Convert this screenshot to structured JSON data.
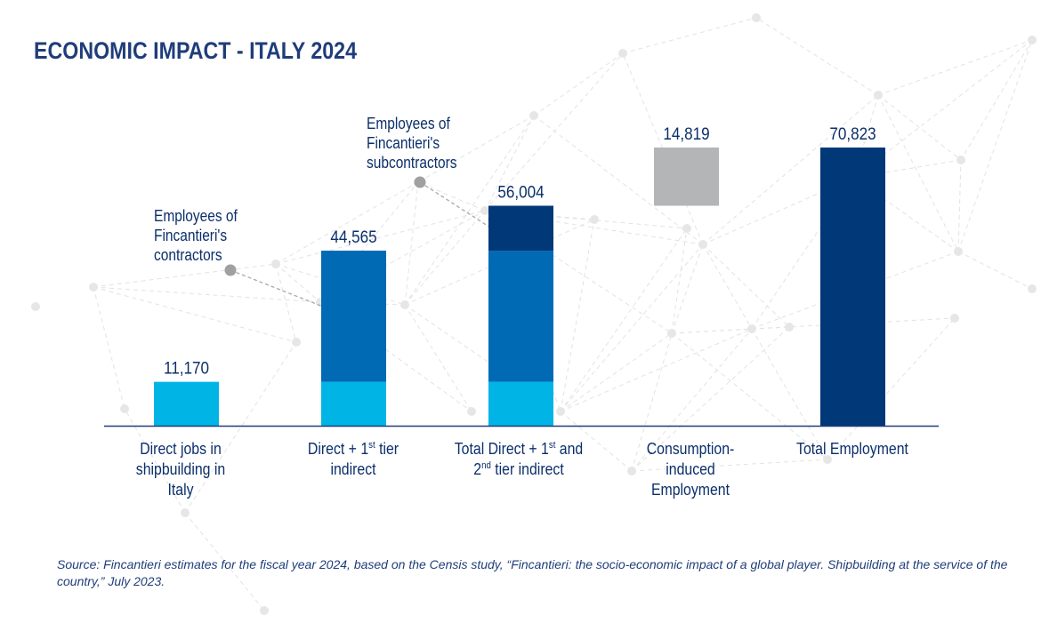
{
  "title": "ECONOMIC IMPACT - ITALY 2024",
  "colors": {
    "light_blue": "#00b4e6",
    "mid_blue": "#006ab4",
    "dark_blue": "#003878",
    "gray": "#b4b5b7",
    "axis": "#1f3d7a",
    "text": "#0b2f6a"
  },
  "categories": [
    {
      "line1": "Direct jobs in",
      "line2": "shipbuilding in",
      "line3": "Italy"
    },
    {
      "line1a": "Direct + 1",
      "line1sup": "st",
      "line1b": " tier",
      "line2": "indirect"
    },
    {
      "line1a": "Total Direct + 1",
      "line1sup": "st",
      "line1b": " and",
      "line2a": "2",
      "line2sup": "nd",
      "line2b": " tier indirect"
    },
    {
      "line1": "Consumption-induced",
      "line2": "Employment"
    },
    {
      "line1": "Total Employment"
    }
  ],
  "callouts": {
    "contractors": [
      "Employees of",
      "Fincantieri's",
      "contractors"
    ],
    "subcontractors": [
      "Employees of",
      "Fincantieri's",
      "subcontractors"
    ]
  },
  "source": "Source: Fincantieri estimates for the fiscal year 2024, based on the Censis study, “Fincantieri: the socio-economic impact of a global player. Shipbuilding at the service of the country,” July 2023.",
  "chart_data": {
    "type": "bar",
    "title": "ECONOMIC IMPACT - ITALY 2024",
    "categories": [
      "Direct jobs in shipbuilding in Italy",
      "Direct + 1st tier indirect",
      "Total Direct + 1st and 2nd tier indirect",
      "Consumption-induced Employment",
      "Total Employment"
    ],
    "totals": [
      11170,
      44565,
      56004,
      14819,
      70823
    ],
    "total_labels": [
      "11,170",
      "44,565",
      "56,004",
      "14,819",
      "70,823"
    ],
    "bars": [
      {
        "segments": [
          {
            "from": 0,
            "to": 11170,
            "color": "light_blue"
          }
        ]
      },
      {
        "segments": [
          {
            "from": 0,
            "to": 11170,
            "color": "light_blue"
          },
          {
            "from": 11170,
            "to": 44565,
            "color": "mid_blue"
          }
        ]
      },
      {
        "segments": [
          {
            "from": 0,
            "to": 11170,
            "color": "light_blue"
          },
          {
            "from": 11170,
            "to": 44565,
            "color": "mid_blue"
          },
          {
            "from": 44565,
            "to": 56004,
            "color": "dark_blue"
          }
        ]
      },
      {
        "segments": [
          {
            "from": 56004,
            "to": 70823,
            "color": "gray"
          }
        ]
      },
      {
        "segments": [
          {
            "from": 0,
            "to": 70823,
            "color": "dark_blue"
          }
        ]
      }
    ],
    "ylim": [
      0,
      70823
    ],
    "grid": false,
    "legend": "none"
  }
}
